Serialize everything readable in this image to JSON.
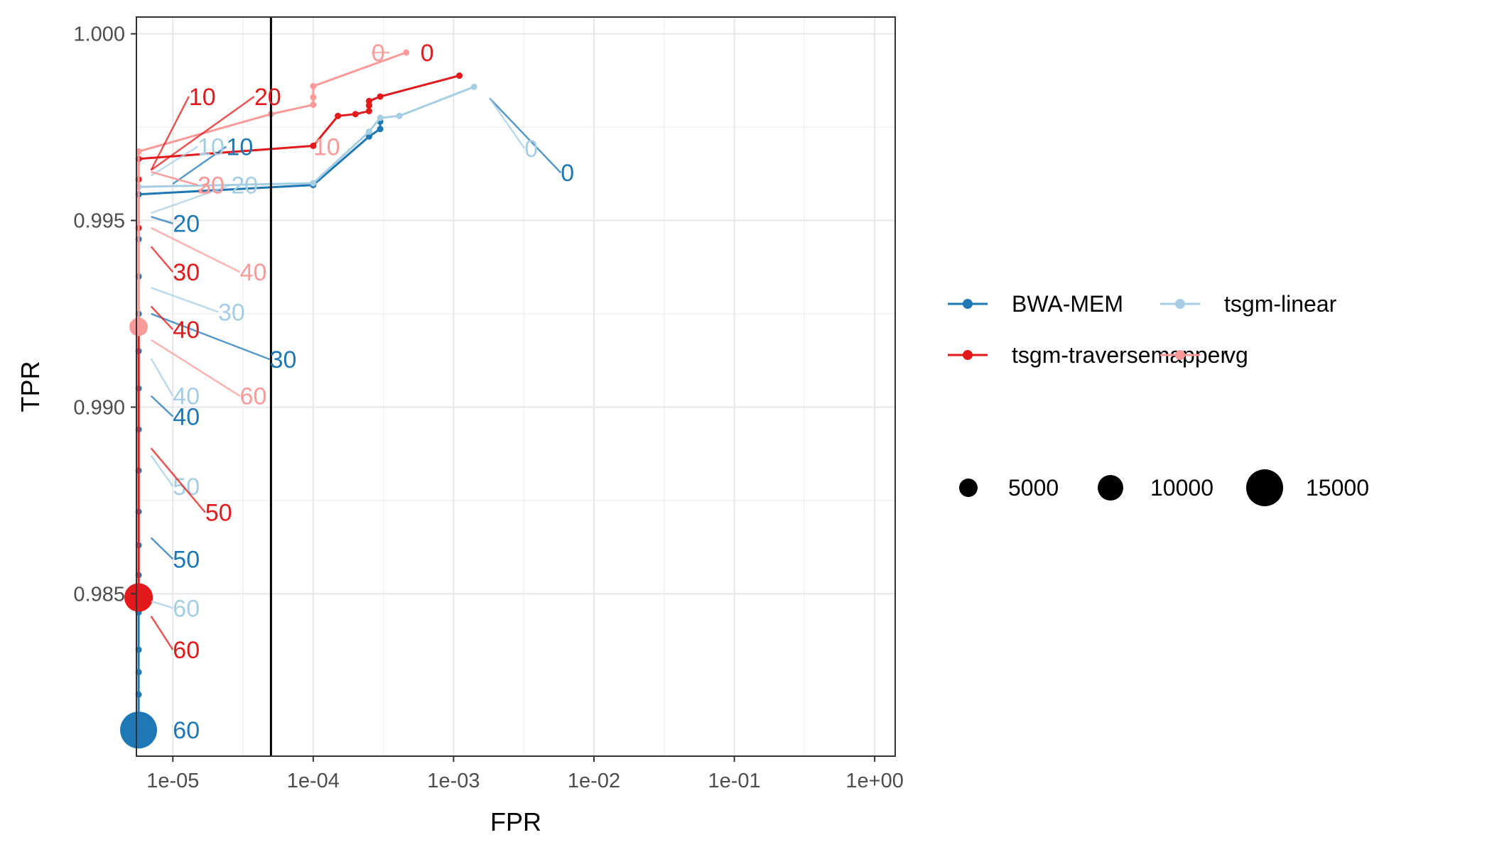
{
  "chart_data": {
    "type": "line",
    "title": "",
    "xlabel": "FPR",
    "ylabel": "TPR",
    "xscale": "log",
    "xlim": [
      5.5e-06,
      1.4
    ],
    "ylim": [
      0.98065,
      1.00045
    ],
    "grid": true,
    "vline_x": 5e-05,
    "x_ticks": [
      {
        "value": 1e-05,
        "label": "1e-05"
      },
      {
        "value": 0.0001,
        "label": "1e-04"
      },
      {
        "value": 0.001,
        "label": "1e-03"
      },
      {
        "value": 0.01,
        "label": "1e-02"
      },
      {
        "value": 0.1,
        "label": "1e-01"
      },
      {
        "value": 1,
        "label": "1e+00"
      }
    ],
    "y_ticks": [
      {
        "value": 0.985,
        "label": "0.985"
      },
      {
        "value": 0.99,
        "label": "0.990"
      },
      {
        "value": 0.995,
        "label": "0.995"
      },
      {
        "value": 1.0,
        "label": "1.000"
      }
    ],
    "legend_position": "right",
    "size_legend": [
      {
        "value": 5000,
        "label": "5000"
      },
      {
        "value": 10000,
        "label": "10000"
      },
      {
        "value": 15000,
        "label": "15000"
      }
    ],
    "series": [
      {
        "name": "BWA-MEM",
        "color": "#1f78b4",
        "points": [
          {
            "x": 5.7e-06,
            "y": 0.98135,
            "size": 11000
          },
          {
            "x": 5.7e-06,
            "y": 0.9823,
            "size": 300
          },
          {
            "x": 5.7e-06,
            "y": 0.9829,
            "size": 300
          },
          {
            "x": 5.7e-06,
            "y": 0.9835,
            "size": 300
          },
          {
            "x": 5.7e-06,
            "y": 0.9845,
            "size": 300
          },
          {
            "x": 5.7e-06,
            "y": 0.9855,
            "size": 300
          },
          {
            "x": 5.7e-06,
            "y": 0.9863,
            "size": 300
          },
          {
            "x": 5.7e-06,
            "y": 0.9872,
            "size": 300
          },
          {
            "x": 5.7e-06,
            "y": 0.9883,
            "size": 300
          },
          {
            "x": 5.7e-06,
            "y": 0.9894,
            "size": 300
          },
          {
            "x": 5.7e-06,
            "y": 0.9905,
            "size": 300
          },
          {
            "x": 5.7e-06,
            "y": 0.9915,
            "size": 300
          },
          {
            "x": 5.7e-06,
            "y": 0.9925,
            "size": 300
          },
          {
            "x": 5.7e-06,
            "y": 0.9935,
            "size": 300
          },
          {
            "x": 5.7e-06,
            "y": 0.9945,
            "size": 300
          },
          {
            "x": 5.7e-06,
            "y": 0.9957,
            "size": 300
          },
          {
            "x": 0.0001,
            "y": 0.99595,
            "size": 300
          },
          {
            "x": 0.00025,
            "y": 0.99725,
            "size": 300
          },
          {
            "x": 0.0003,
            "y": 0.99745,
            "size": 300
          },
          {
            "x": 0.0003,
            "y": 0.99765,
            "size": 300
          }
        ],
        "labels": [
          {
            "text": "0",
            "x": 0.0058,
            "y": 0.99628,
            "px": 0.0018,
            "py": 0.99828
          },
          {
            "text": "10",
            "x": 2.4e-05,
            "y": 0.99698,
            "px": 1e-05,
            "py": 0.99598
          },
          {
            "text": "20",
            "x": 1e-05,
            "y": 0.99492,
            "px": 7e-06,
            "py": 0.9951
          },
          {
            "text": "30",
            "x": 4.9e-05,
            "y": 0.99128,
            "px": 7e-06,
            "py": 0.9925
          },
          {
            "text": "40",
            "x": 1e-05,
            "y": 0.98975,
            "px": 7e-06,
            "py": 0.9903
          },
          {
            "text": "50",
            "x": 1e-05,
            "y": 0.98593,
            "px": 7e-06,
            "py": 0.9865
          },
          {
            "text": "60",
            "x": 1e-05,
            "y": 0.98135,
            "px": null,
            "py": null
          }
        ]
      },
      {
        "name": "tsgm-linear",
        "color": "#a6cee3",
        "points": [
          {
            "x": 5.7e-06,
            "y": 0.98495,
            "size": 3000
          },
          {
            "x": 5.7e-06,
            "y": 0.9959,
            "size": 300
          },
          {
            "x": 0.0001,
            "y": 0.996,
            "size": 300
          },
          {
            "x": 0.00025,
            "y": 0.99738,
            "size": 300
          },
          {
            "x": 0.0003,
            "y": 0.99775,
            "size": 300
          },
          {
            "x": 0.00041,
            "y": 0.9978,
            "size": 300
          },
          {
            "x": 0.0014,
            "y": 0.99858,
            "size": 300
          }
        ],
        "labels": [
          {
            "text": "0",
            "x": 0.0032,
            "y": 0.99693,
            "px": 0.0018,
            "py": 0.99828
          },
          {
            "text": "10",
            "x": 1.5e-05,
            "y": 0.99698,
            "px": 7e-06,
            "py": 0.9962
          },
          {
            "text": "20",
            "x": 2.6e-05,
            "y": 0.99595,
            "px": 7e-06,
            "py": 0.9952
          },
          {
            "text": "30",
            "x": 2.1e-05,
            "y": 0.99255,
            "px": 7e-06,
            "py": 0.9932
          },
          {
            "text": "40",
            "x": 1e-05,
            "y": 0.9903,
            "px": 7e-06,
            "py": 0.9913
          },
          {
            "text": "50",
            "x": 1e-05,
            "y": 0.98788,
            "px": 7e-06,
            "py": 0.9887
          },
          {
            "text": "60",
            "x": 1e-05,
            "y": 0.98462,
            "px": 7e-06,
            "py": 0.9848
          }
        ]
      },
      {
        "name": "tsgm-traversemapper",
        "color": "#e31a1c",
        "points": [
          {
            "x": 5.7e-06,
            "y": 0.9849,
            "size": 6000
          },
          {
            "x": 5.7e-06,
            "y": 0.9948,
            "size": 300
          },
          {
            "x": 5.7e-06,
            "y": 0.9961,
            "size": 300
          },
          {
            "x": 5.7e-06,
            "y": 0.99665,
            "size": 300
          },
          {
            "x": 0.0001,
            "y": 0.997,
            "size": 300
          },
          {
            "x": 0.00015,
            "y": 0.9978,
            "size": 300
          },
          {
            "x": 0.0002,
            "y": 0.99785,
            "size": 300
          },
          {
            "x": 0.00025,
            "y": 0.99793,
            "size": 300
          },
          {
            "x": 0.00025,
            "y": 0.99808,
            "size": 300
          },
          {
            "x": 0.00025,
            "y": 0.9982,
            "size": 300
          },
          {
            "x": 0.0003,
            "y": 0.99832,
            "size": 300
          },
          {
            "x": 0.0011,
            "y": 0.99888,
            "size": 300
          }
        ],
        "labels": [
          {
            "text": "0",
            "x": 0.00058,
            "y": 0.9995,
            "px": null,
            "py": null
          },
          {
            "text": "10",
            "x": 1.3e-05,
            "y": 0.99832,
            "px": 7e-06,
            "py": 0.99635
          },
          {
            "text": "20",
            "x": 3.8e-05,
            "y": 0.99832,
            "px": 7e-06,
            "py": 0.99635
          },
          {
            "text": "30",
            "x": 1e-05,
            "y": 0.99362,
            "px": 7e-06,
            "py": 0.9943
          },
          {
            "text": "40",
            "x": 1e-05,
            "y": 0.99208,
            "px": 7e-06,
            "py": 0.9927
          },
          {
            "text": "50",
            "x": 1.7e-05,
            "y": 0.98718,
            "px": 7e-06,
            "py": 0.9889
          },
          {
            "text": "60",
            "x": 1e-05,
            "y": 0.9835,
            "px": 7e-06,
            "py": 0.9844
          }
        ]
      },
      {
        "name": "vg",
        "color": "#fb9a99",
        "points": [
          {
            "x": 5.7e-06,
            "y": 0.99215,
            "size": 2500
          },
          {
            "x": 5.7e-06,
            "y": 0.99685,
            "size": 300
          },
          {
            "x": 5e-05,
            "y": 0.99785,
            "size": 300
          },
          {
            "x": 0.0001,
            "y": 0.9981,
            "size": 300
          },
          {
            "x": 0.0001,
            "y": 0.9983,
            "size": 300
          },
          {
            "x": 0.0001,
            "y": 0.9986,
            "size": 300
          },
          {
            "x": 0.00046,
            "y": 0.9995,
            "size": 300
          }
        ],
        "labels": [
          {
            "text": "0",
            "x": 0.00026,
            "y": 0.9995,
            "px": 0.00035,
            "py": 0.9995
          },
          {
            "text": "10",
            "x": 0.0001,
            "y": 0.99698,
            "px": null,
            "py": null
          },
          {
            "text": "20",
            "x": 1.5e-05,
            "y": 0.99595,
            "px": 7e-06,
            "py": 0.9963
          },
          {
            "text": "30",
            "x": 1.5e-05,
            "y": 0.99595,
            "px": 7e-06,
            "py": 0.9963
          },
          {
            "text": "40",
            "x": 3e-05,
            "y": 0.99362,
            "px": 7e-06,
            "py": 0.9948
          },
          {
            "text": "60",
            "x": 3e-05,
            "y": 0.9903,
            "px": 7e-06,
            "py": 0.9918
          }
        ]
      }
    ]
  }
}
